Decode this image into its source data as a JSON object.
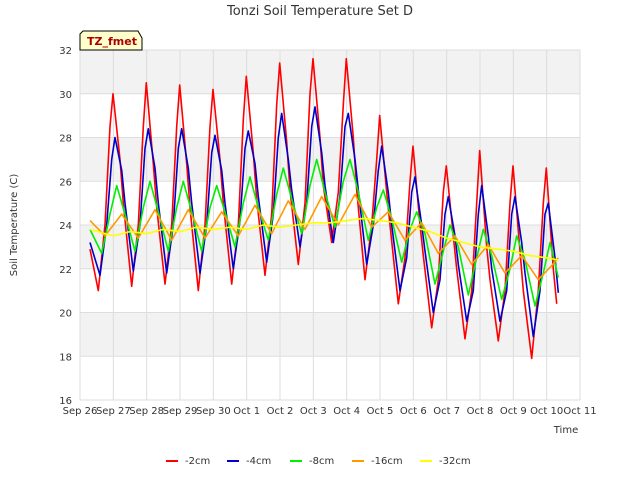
{
  "chart_data": {
    "type": "line",
    "title": "Tonzi Soil Temperature Set D",
    "xlabel": "Time",
    "ylabel": "Soil Temperature (C)",
    "badge": "TZ_fmet",
    "ylim": [
      16,
      32
    ],
    "xlim": [
      0,
      15
    ],
    "yticks": [
      16,
      18,
      20,
      22,
      24,
      26,
      28,
      30,
      32
    ],
    "xticks": [
      "Sep 26",
      "Sep 27",
      "Sep 28",
      "Sep 29",
      "Sep 30",
      "Oct 1",
      "Oct 2",
      "Oct 3",
      "Oct 4",
      "Oct 5",
      "Oct 6",
      "Oct 7",
      "Oct 8",
      "Oct 9",
      "Oct 10",
      "Oct 11"
    ],
    "grid": true,
    "legend_position": "bottom",
    "x_unit": "days after Sep 26 00:00",
    "series": [
      {
        "name": "-2cm",
        "color": "#ff0000",
        "x": [
          0.3,
          0.55,
          0.75,
          0.9,
          0.99,
          1.2,
          1.3,
          1.55,
          1.75,
          1.9,
          1.99,
          2.2,
          2.3,
          2.55,
          2.75,
          2.9,
          2.99,
          3.2,
          3.3,
          3.55,
          3.75,
          3.9,
          3.99,
          4.2,
          4.3,
          4.55,
          4.75,
          4.9,
          4.99,
          5.2,
          5.3,
          5.55,
          5.75,
          5.9,
          5.99,
          6.2,
          6.3,
          6.55,
          6.75,
          6.9,
          6.99,
          7.2,
          7.3,
          7.55,
          7.75,
          7.9,
          7.99,
          8.2,
          8.3,
          8.55,
          8.75,
          8.9,
          8.99,
          9.2,
          9.3,
          9.55,
          9.75,
          9.9,
          9.99,
          10.2,
          10.3,
          10.55,
          10.75,
          10.9,
          10.99,
          11.2,
          11.3,
          11.55,
          11.75,
          11.9,
          11.99,
          12.2,
          12.3,
          12.55,
          12.75,
          12.9,
          12.99,
          13.2,
          13.3,
          13.55,
          13.75,
          13.9,
          13.99,
          14.2,
          14.3
        ],
        "y": [
          22.9,
          21.0,
          24.0,
          28.5,
          30.0,
          27.0,
          25.0,
          21.2,
          24.0,
          28.5,
          30.5,
          26.8,
          24.8,
          21.3,
          24.0,
          28.5,
          30.4,
          26.8,
          24.8,
          21.0,
          24.0,
          28.5,
          30.2,
          27.0,
          25.0,
          21.3,
          24.0,
          28.8,
          30.8,
          27.3,
          25.2,
          21.7,
          24.5,
          29.5,
          31.4,
          27.8,
          25.6,
          22.2,
          25.0,
          30.0,
          31.6,
          28.0,
          25.8,
          23.2,
          25.5,
          29.5,
          31.6,
          28.0,
          25.6,
          21.5,
          24.0,
          27.0,
          29.0,
          25.5,
          24.0,
          20.4,
          22.5,
          26.0,
          27.6,
          24.0,
          22.6,
          19.3,
          21.5,
          25.5,
          26.7,
          23.5,
          22.0,
          18.8,
          21.0,
          25.0,
          27.4,
          23.0,
          21.5,
          18.7,
          21.0,
          25.0,
          26.7,
          22.8,
          21.0,
          17.9,
          21.0,
          25.0,
          26.6,
          22.0,
          20.4
        ]
      },
      {
        "name": "-4cm",
        "color": "#0000cc",
        "x": [
          0.3,
          0.6,
          0.8,
          0.95,
          1.05,
          1.25,
          1.35,
          1.6,
          1.8,
          1.95,
          2.05,
          2.25,
          2.35,
          2.6,
          2.8,
          2.95,
          3.05,
          3.25,
          3.35,
          3.6,
          3.8,
          3.95,
          4.05,
          4.25,
          4.35,
          4.6,
          4.8,
          4.95,
          5.05,
          5.25,
          5.35,
          5.6,
          5.8,
          5.95,
          6.05,
          6.25,
          6.35,
          6.6,
          6.8,
          6.95,
          7.05,
          7.25,
          7.35,
          7.6,
          7.8,
          7.95,
          8.05,
          8.25,
          8.35,
          8.6,
          8.8,
          8.95,
          9.05,
          9.25,
          9.35,
          9.6,
          9.8,
          9.95,
          10.05,
          10.25,
          10.35,
          10.6,
          10.8,
          10.95,
          11.05,
          11.25,
          11.35,
          11.6,
          11.8,
          11.95,
          12.05,
          12.25,
          12.35,
          12.6,
          12.8,
          12.95,
          13.05,
          13.25,
          13.35,
          13.6,
          13.8,
          13.95,
          14.05,
          14.25,
          14.35
        ],
        "y": [
          23.2,
          21.7,
          24.0,
          27.0,
          28.0,
          26.5,
          25.0,
          21.9,
          24.0,
          27.5,
          28.4,
          26.6,
          25.0,
          21.8,
          24.0,
          27.5,
          28.4,
          26.6,
          25.0,
          21.8,
          24.0,
          27.3,
          28.1,
          26.5,
          25.0,
          22.0,
          24.2,
          27.5,
          28.3,
          26.8,
          25.3,
          22.3,
          24.5,
          28.0,
          29.1,
          27.0,
          25.6,
          23.0,
          25.0,
          28.5,
          29.4,
          27.3,
          25.8,
          23.2,
          25.3,
          28.5,
          29.1,
          27.0,
          25.6,
          22.2,
          24.0,
          26.5,
          27.6,
          25.5,
          24.0,
          21.0,
          22.5,
          25.5,
          26.2,
          24.0,
          22.8,
          20.0,
          21.5,
          24.5,
          25.3,
          23.5,
          22.2,
          19.6,
          21.0,
          24.5,
          25.8,
          23.5,
          22.0,
          19.6,
          21.0,
          24.5,
          25.3,
          23.2,
          21.8,
          18.9,
          21.0,
          24.5,
          25.0,
          22.5,
          20.9
        ]
      },
      {
        "name": "-8cm",
        "color": "#00ee00",
        "x": [
          0.3,
          0.65,
          0.9,
          1.1,
          1.35,
          1.65,
          1.9,
          2.1,
          2.35,
          2.65,
          2.9,
          3.1,
          3.35,
          3.65,
          3.9,
          4.1,
          4.35,
          4.65,
          4.9,
          5.1,
          5.35,
          5.65,
          5.9,
          6.1,
          6.35,
          6.65,
          6.9,
          7.1,
          7.35,
          7.65,
          7.9,
          8.1,
          8.35,
          8.65,
          8.9,
          9.1,
          9.35,
          9.65,
          9.9,
          10.1,
          10.35,
          10.65,
          10.9,
          11.1,
          11.35,
          11.65,
          11.9,
          12.1,
          12.35,
          12.65,
          12.9,
          13.1,
          13.35,
          13.65,
          13.9,
          14.1,
          14.35
        ],
        "y": [
          23.8,
          22.7,
          24.5,
          25.8,
          24.5,
          22.8,
          24.8,
          26.0,
          24.6,
          22.8,
          24.8,
          26.0,
          24.6,
          22.8,
          24.8,
          25.8,
          24.6,
          23.0,
          25.0,
          26.2,
          24.8,
          23.3,
          25.4,
          26.6,
          25.2,
          23.6,
          25.8,
          27.0,
          25.5,
          23.9,
          26.0,
          27.0,
          25.5,
          23.3,
          24.8,
          25.6,
          24.3,
          22.3,
          23.8,
          24.6,
          23.6,
          21.3,
          22.8,
          24.0,
          23.0,
          20.8,
          22.5,
          23.8,
          22.6,
          20.6,
          22.0,
          23.5,
          22.4,
          20.3,
          21.8,
          23.2,
          21.6
        ]
      },
      {
        "name": "-16cm",
        "color": "#ff9900",
        "x": [
          0.3,
          0.75,
          1.25,
          1.75,
          2.25,
          2.75,
          3.25,
          3.75,
          4.25,
          4.75,
          5.25,
          5.75,
          6.25,
          6.75,
          7.25,
          7.75,
          8.25,
          8.75,
          9.25,
          9.75,
          10.25,
          10.75,
          11.25,
          11.75,
          12.25,
          12.75,
          13.25,
          13.75,
          14.25,
          14.35
        ],
        "y": [
          24.2,
          23.5,
          24.5,
          23.4,
          24.7,
          23.3,
          24.7,
          23.4,
          24.6,
          23.5,
          24.9,
          23.6,
          25.1,
          23.8,
          25.3,
          24.0,
          25.4,
          23.9,
          24.6,
          23.3,
          24.1,
          22.7,
          23.5,
          22.2,
          23.1,
          21.8,
          22.6,
          21.5,
          22.3,
          22.5
        ]
      },
      {
        "name": "-32cm",
        "color": "#ffff00",
        "x": [
          0.3,
          1.0,
          1.5,
          2.0,
          2.5,
          3.0,
          3.5,
          4.0,
          4.5,
          5.0,
          5.5,
          6.0,
          6.5,
          7.0,
          7.5,
          8.0,
          8.5,
          9.0,
          9.5,
          10.0,
          10.5,
          11.0,
          11.5,
          12.0,
          12.5,
          13.0,
          13.5,
          14.0,
          14.35
        ],
        "y": [
          23.8,
          23.5,
          23.7,
          23.6,
          23.8,
          23.7,
          23.9,
          23.8,
          23.9,
          23.8,
          24.0,
          23.9,
          24.0,
          24.1,
          24.1,
          24.2,
          24.3,
          24.2,
          24.1,
          23.9,
          23.7,
          23.4,
          23.2,
          23.0,
          22.9,
          22.8,
          22.6,
          22.5,
          22.4
        ]
      }
    ]
  }
}
